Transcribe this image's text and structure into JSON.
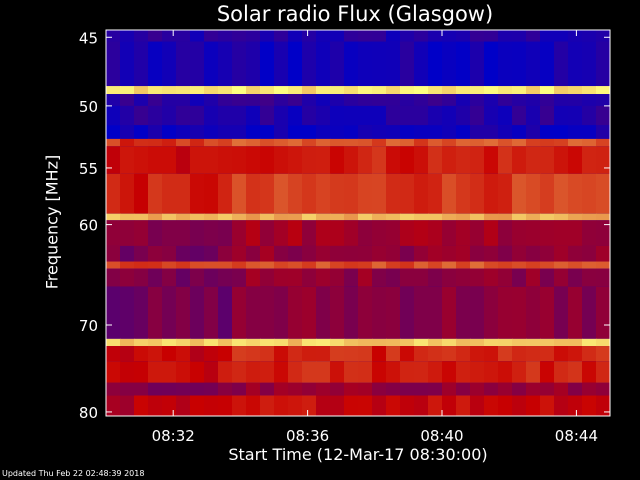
{
  "chart_data": {
    "type": "heatmap",
    "title": "Solar radio Flux (Glasgow)",
    "xlabel": "Start Time (12-Mar-17 08:30:00)",
    "ylabel": "Frequency [MHz]",
    "x_ticks": [
      "08:32",
      "08:36",
      "08:40",
      "08:44"
    ],
    "x_tick_minutes": [
      2,
      6,
      10,
      14
    ],
    "x_range_minutes": [
      0,
      15
    ],
    "y_ticks": [
      "45",
      "50",
      "55",
      "60",
      "70",
      "80"
    ],
    "y_tick_values": [
      45,
      50,
      55,
      60,
      70,
      80
    ],
    "y_range": [
      44.5,
      80.5
    ],
    "y_scale": "log",
    "colors": {
      "low": "#0000c8",
      "mid": "#c80000",
      "high": "#ffff80"
    },
    "bands": [
      {
        "from": 44.5,
        "to": 45.3,
        "level": 0.08
      },
      {
        "from": 45.3,
        "to": 48.5,
        "level": 0.05
      },
      {
        "from": 48.5,
        "to": 49.1,
        "level": 0.95
      },
      {
        "from": 49.1,
        "to": 50.0,
        "level": 0.1
      },
      {
        "from": 50.0,
        "to": 51.5,
        "level": 0.08
      },
      {
        "from": 51.5,
        "to": 52.6,
        "level": 0.03
      },
      {
        "from": 52.6,
        "to": 53.2,
        "level": 0.6
      },
      {
        "from": 53.2,
        "to": 55.5,
        "level": 0.5
      },
      {
        "from": 55.5,
        "to": 59.0,
        "level": 0.55
      },
      {
        "from": 59.0,
        "to": 59.6,
        "level": 0.85
      },
      {
        "from": 59.6,
        "to": 62.0,
        "level": 0.35
      },
      {
        "from": 62.0,
        "to": 63.5,
        "level": 0.3
      },
      {
        "from": 63.5,
        "to": 64.2,
        "level": 0.6
      },
      {
        "from": 64.2,
        "to": 66.0,
        "level": 0.3
      },
      {
        "from": 66.0,
        "to": 71.5,
        "level": 0.28
      },
      {
        "from": 71.5,
        "to": 72.3,
        "level": 0.9
      },
      {
        "from": 72.3,
        "to": 74.0,
        "level": 0.5
      },
      {
        "from": 74.0,
        "to": 76.5,
        "level": 0.5
      },
      {
        "from": 76.5,
        "to": 78.0,
        "level": 0.3
      },
      {
        "from": 78.0,
        "to": 80.5,
        "level": 0.45
      }
    ],
    "onset_minute": 3.6
  },
  "footer": "Updated Thu Feb 22 02:48:39 2018"
}
